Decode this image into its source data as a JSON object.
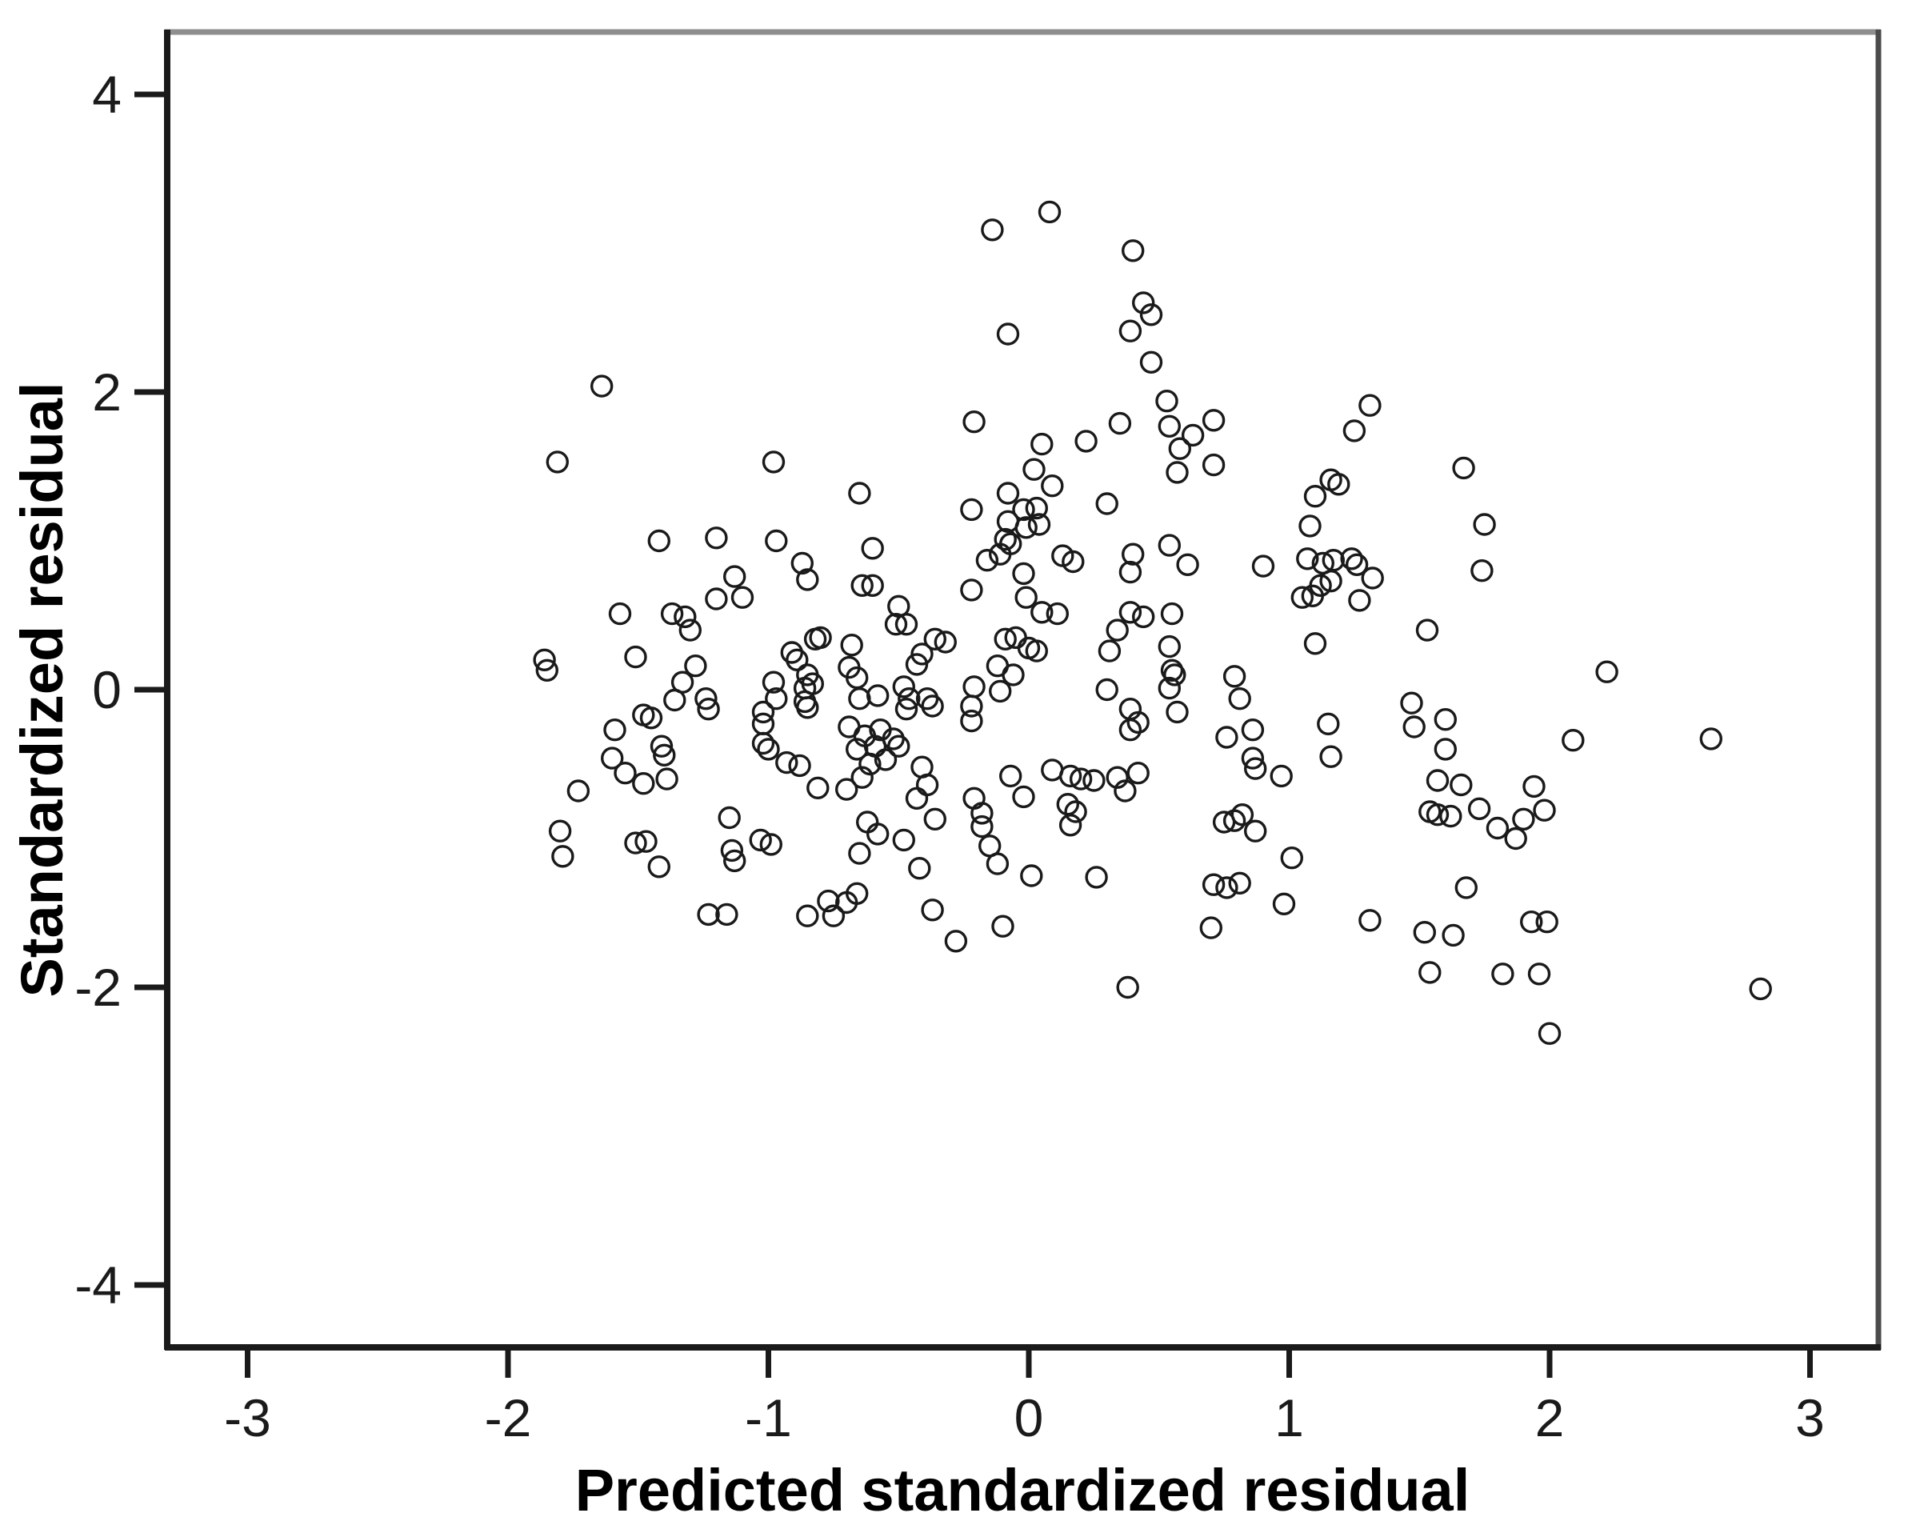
{
  "chart_data": {
    "type": "scatter",
    "title": "",
    "xlabel": "Predicted standardized residual",
    "ylabel": "Standardized residual",
    "xlim": [
      -3.3,
      3.45
    ],
    "ylim": [
      -4.45,
      4.45
    ],
    "x_ticks": [
      -3,
      -2,
      -1,
      0,
      1,
      2,
      3
    ],
    "y_ticks": [
      -4,
      -2,
      0,
      2,
      4
    ],
    "grid": false,
    "legend": null,
    "marker": {
      "shape": "open-circle",
      "stroke_color": "#1a1a1a",
      "fill": "none"
    },
    "frame_colors": {
      "top": "#8e8e8e",
      "right": "#4b4b4b",
      "left": "#1a1a1a",
      "bottom": "#1a1a1a"
    },
    "points": [
      [
        -1.64,
        2.04
      ],
      [
        -1.81,
        1.53
      ],
      [
        -0.98,
        1.53
      ],
      [
        0.08,
        3.21
      ],
      [
        -0.14,
        3.09
      ],
      [
        0.4,
        2.95
      ],
      [
        0.44,
        2.6
      ],
      [
        0.47,
        2.52
      ],
      [
        0.39,
        2.41
      ],
      [
        -0.08,
        2.39
      ],
      [
        0.47,
        2.2
      ],
      [
        -0.21,
        1.8
      ],
      [
        0.05,
        1.65
      ],
      [
        0.02,
        1.48
      ],
      [
        0.22,
        1.67
      ],
      [
        0.35,
        1.79
      ],
      [
        0.09,
        1.37
      ],
      [
        -0.08,
        1.32
      ],
      [
        -0.22,
        1.21
      ],
      [
        -0.08,
        1.13
      ],
      [
        -0.02,
        1.21
      ],
      [
        0.03,
        1.22
      ],
      [
        -0.01,
        1.09
      ],
      [
        0.04,
        1.11
      ],
      [
        0.3,
        1.25
      ],
      [
        -0.65,
        1.32
      ],
      [
        0.53,
        1.94
      ],
      [
        0.71,
        1.81
      ],
      [
        0.54,
        1.77
      ],
      [
        0.63,
        1.71
      ],
      [
        0.58,
        1.62
      ],
      [
        0.71,
        1.51
      ],
      [
        0.57,
        1.46
      ],
      [
        1.31,
        1.91
      ],
      [
        1.25,
        1.74
      ],
      [
        1.16,
        1.41
      ],
      [
        1.19,
        1.38
      ],
      [
        1.1,
        1.3
      ],
      [
        1.08,
        1.1
      ],
      [
        1.67,
        1.49
      ],
      [
        1.75,
        1.11
      ],
      [
        -1.42,
        1.0
      ],
      [
        -1.2,
        1.02
      ],
      [
        -0.97,
        1.0
      ],
      [
        -1.13,
        0.76
      ],
      [
        -1.1,
        0.62
      ],
      [
        -1.2,
        0.61
      ],
      [
        -0.87,
        0.85
      ],
      [
        -0.85,
        0.74
      ],
      [
        -1.57,
        0.51
      ],
      [
        -1.37,
        0.51
      ],
      [
        -1.32,
        0.49
      ],
      [
        -1.3,
        0.4
      ],
      [
        -1.51,
        0.22
      ],
      [
        -1.86,
        0.2
      ],
      [
        -1.85,
        0.13
      ],
      [
        -1.28,
        0.16
      ],
      [
        -1.33,
        0.05
      ],
      [
        -1.36,
        -0.07
      ],
      [
        -1.24,
        -0.06
      ],
      [
        -1.23,
        -0.13
      ],
      [
        -1.48,
        -0.17
      ],
      [
        -1.45,
        -0.19
      ],
      [
        -1.59,
        -0.27
      ],
      [
        -1.41,
        -0.38
      ],
      [
        -1.4,
        -0.44
      ],
      [
        -1.6,
        -0.46
      ],
      [
        -1.55,
        -0.56
      ],
      [
        -1.48,
        -0.63
      ],
      [
        -1.39,
        -0.6
      ],
      [
        -1.73,
        -0.68
      ],
      [
        -1.8,
        -0.95
      ],
      [
        -1.79,
        -1.12
      ],
      [
        -1.51,
        -1.03
      ],
      [
        -1.47,
        -1.02
      ],
      [
        -1.42,
        -1.19
      ],
      [
        -1.15,
        -0.86
      ],
      [
        -1.14,
        -1.08
      ],
      [
        -1.13,
        -1.15
      ],
      [
        -1.03,
        -1.01
      ],
      [
        -0.99,
        -1.04
      ],
      [
        -0.98,
        0.05
      ],
      [
        -0.97,
        -0.06
      ],
      [
        -0.91,
        0.25
      ],
      [
        -0.89,
        0.2
      ],
      [
        -0.82,
        0.34
      ],
      [
        -0.8,
        0.35
      ],
      [
        -0.85,
        0.1
      ],
      [
        -0.83,
        0.04
      ],
      [
        -0.86,
        0.01
      ],
      [
        -0.86,
        -0.08
      ],
      [
        -0.85,
        -0.12
      ],
      [
        -1.02,
        -0.15
      ],
      [
        -1.02,
        -0.36
      ],
      [
        -1.0,
        -0.4
      ],
      [
        -0.93,
        -0.49
      ],
      [
        -0.88,
        -0.51
      ],
      [
        -0.81,
        -0.66
      ],
      [
        -1.02,
        -0.23
      ],
      [
        -0.6,
        0.95
      ],
      [
        -0.64,
        0.7
      ],
      [
        -0.6,
        0.7
      ],
      [
        -0.5,
        0.56
      ],
      [
        -0.51,
        0.44
      ],
      [
        -0.47,
        0.44
      ],
      [
        -0.22,
        0.67
      ],
      [
        -0.16,
        0.87
      ],
      [
        -0.11,
        0.91
      ],
      [
        -0.07,
        0.98
      ],
      [
        -0.09,
        1.01
      ],
      [
        -0.02,
        0.78
      ],
      [
        -0.01,
        0.62
      ],
      [
        0.05,
        0.52
      ],
      [
        0.11,
        0.51
      ],
      [
        0.13,
        0.9
      ],
      [
        0.17,
        0.86
      ],
      [
        0.4,
        0.91
      ],
      [
        0.39,
        0.79
      ],
      [
        0.39,
        0.52
      ],
      [
        0.44,
        0.49
      ],
      [
        0.34,
        0.4
      ],
      [
        0.31,
        0.26
      ],
      [
        -0.68,
        0.3
      ],
      [
        -0.69,
        0.15
      ],
      [
        -0.66,
        0.08
      ],
      [
        -0.58,
        -0.04
      ],
      [
        -0.65,
        -0.06
      ],
      [
        -0.48,
        0.02
      ],
      [
        -0.46,
        -0.06
      ],
      [
        -0.39,
        -0.06
      ],
      [
        -0.37,
        -0.11
      ],
      [
        -0.47,
        -0.13
      ],
      [
        -0.36,
        0.34
      ],
      [
        -0.32,
        0.32
      ],
      [
        -0.41,
        0.24
      ],
      [
        -0.43,
        0.17
      ],
      [
        -0.09,
        0.34
      ],
      [
        -0.05,
        0.35
      ],
      [
        0.0,
        0.28
      ],
      [
        0.03,
        0.26
      ],
      [
        -0.12,
        0.16
      ],
      [
        -0.06,
        0.1
      ],
      [
        -0.11,
        -0.01
      ],
      [
        -0.21,
        0.02
      ],
      [
        -0.22,
        -0.11
      ],
      [
        -0.22,
        -0.21
      ],
      [
        0.3,
        0.0
      ],
      [
        0.39,
        -0.13
      ],
      [
        0.42,
        -0.22
      ],
      [
        0.39,
        -0.27
      ],
      [
        -0.69,
        -0.25
      ],
      [
        -0.63,
        -0.31
      ],
      [
        -0.57,
        -0.27
      ],
      [
        -0.52,
        -0.33
      ],
      [
        -0.59,
        -0.38
      ],
      [
        -0.66,
        -0.4
      ],
      [
        -0.55,
        -0.47
      ],
      [
        -0.61,
        -0.5
      ],
      [
        -0.5,
        -0.38
      ],
      [
        -0.64,
        -0.59
      ],
      [
        -0.7,
        -0.67
      ],
      [
        -0.41,
        -0.52
      ],
      [
        -0.39,
        -0.64
      ],
      [
        -0.43,
        -0.73
      ],
      [
        -0.36,
        -0.87
      ],
      [
        -0.62,
        -0.89
      ],
      [
        -0.58,
        -0.97
      ],
      [
        -0.48,
        -1.01
      ],
      [
        -0.42,
        -1.2
      ],
      [
        -0.21,
        -0.73
      ],
      [
        -0.18,
        -0.83
      ],
      [
        -0.18,
        -0.92
      ],
      [
        -0.15,
        -1.05
      ],
      [
        -0.12,
        -1.17
      ],
      [
        -0.07,
        -0.58
      ],
      [
        -0.02,
        -0.72
      ],
      [
        0.09,
        -0.54
      ],
      [
        0.16,
        -0.58
      ],
      [
        0.2,
        -0.6
      ],
      [
        0.25,
        -0.61
      ],
      [
        0.34,
        -0.59
      ],
      [
        0.37,
        -0.68
      ],
      [
        0.42,
        -0.56
      ],
      [
        0.15,
        -0.77
      ],
      [
        0.18,
        -0.82
      ],
      [
        0.16,
        -0.91
      ],
      [
        -0.65,
        -1.1
      ],
      [
        0.54,
        0.97
      ],
      [
        0.61,
        0.84
      ],
      [
        0.9,
        0.83
      ],
      [
        1.07,
        0.88
      ],
      [
        1.13,
        0.85
      ],
      [
        1.17,
        0.87
      ],
      [
        1.24,
        0.88
      ],
      [
        1.26,
        0.84
      ],
      [
        1.32,
        0.75
      ],
      [
        1.27,
        0.6
      ],
      [
        1.12,
        0.7
      ],
      [
        1.16,
        0.73
      ],
      [
        1.05,
        0.62
      ],
      [
        1.09,
        0.63
      ],
      [
        1.1,
        0.31
      ],
      [
        1.53,
        0.4
      ],
      [
        1.74,
        0.8
      ],
      [
        0.55,
        0.51
      ],
      [
        0.54,
        0.29
      ],
      [
        0.55,
        0.13
      ],
      [
        0.56,
        0.1
      ],
      [
        0.54,
        0.01
      ],
      [
        0.57,
        -0.15
      ],
      [
        0.79,
        0.09
      ],
      [
        0.81,
        -0.06
      ],
      [
        0.76,
        -0.32
      ],
      [
        0.86,
        -0.27
      ],
      [
        0.86,
        -0.46
      ],
      [
        0.87,
        -0.53
      ],
      [
        0.97,
        -0.58
      ],
      [
        1.15,
        -0.23
      ],
      [
        1.16,
        -0.45
      ],
      [
        1.47,
        -0.09
      ],
      [
        1.48,
        -0.25
      ],
      [
        1.6,
        -0.2
      ],
      [
        1.6,
        -0.4
      ],
      [
        1.57,
        -0.61
      ],
      [
        1.66,
        -0.64
      ],
      [
        1.54,
        -0.82
      ],
      [
        1.57,
        -0.84
      ],
      [
        1.62,
        -0.85
      ],
      [
        0.75,
        -0.89
      ],
      [
        0.79,
        -0.88
      ],
      [
        0.82,
        -0.84
      ],
      [
        0.87,
        -0.95
      ],
      [
        1.01,
        -1.13
      ],
      [
        2.22,
        0.12
      ],
      [
        2.09,
        -0.34
      ],
      [
        2.62,
        -0.33
      ],
      [
        1.94,
        -0.65
      ],
      [
        1.9,
        -0.87
      ],
      [
        1.98,
        -0.81
      ],
      [
        1.8,
        -0.93
      ],
      [
        1.87,
        -1.0
      ],
      [
        1.73,
        -0.8
      ],
      [
        -1.23,
        -1.51
      ],
      [
        -1.16,
        -1.51
      ],
      [
        -0.85,
        -1.52
      ],
      [
        -0.77,
        -1.42
      ],
      [
        -0.75,
        -1.52
      ],
      [
        -0.66,
        -1.37
      ],
      [
        -0.7,
        -1.43
      ],
      [
        -0.37,
        -1.48
      ],
      [
        -0.28,
        -1.69
      ],
      [
        -0.1,
        -1.59
      ],
      [
        0.01,
        -1.25
      ],
      [
        0.26,
        -1.26
      ],
      [
        0.38,
        -2.0
      ],
      [
        0.71,
        -1.31
      ],
      [
        0.76,
        -1.33
      ],
      [
        0.81,
        -1.3
      ],
      [
        0.98,
        -1.44
      ],
      [
        0.7,
        -1.6
      ],
      [
        1.31,
        -1.55
      ],
      [
        1.52,
        -1.63
      ],
      [
        1.63,
        -1.65
      ],
      [
        1.54,
        -1.9
      ],
      [
        1.68,
        -1.33
      ],
      [
        1.93,
        -1.56
      ],
      [
        1.99,
        -1.56
      ],
      [
        1.82,
        -1.91
      ],
      [
        1.96,
        -1.91
      ],
      [
        2.0,
        -2.31
      ],
      [
        2.81,
        -2.01
      ]
    ]
  },
  "axes": {
    "x_title": "Predicted standardized residual",
    "y_title": "Standardized residual",
    "x_tick_labels": [
      "-3",
      "-2",
      "-1",
      "0",
      "1",
      "2",
      "3"
    ],
    "y_tick_labels": [
      "-4",
      "-2",
      "0",
      "2",
      "4"
    ]
  }
}
